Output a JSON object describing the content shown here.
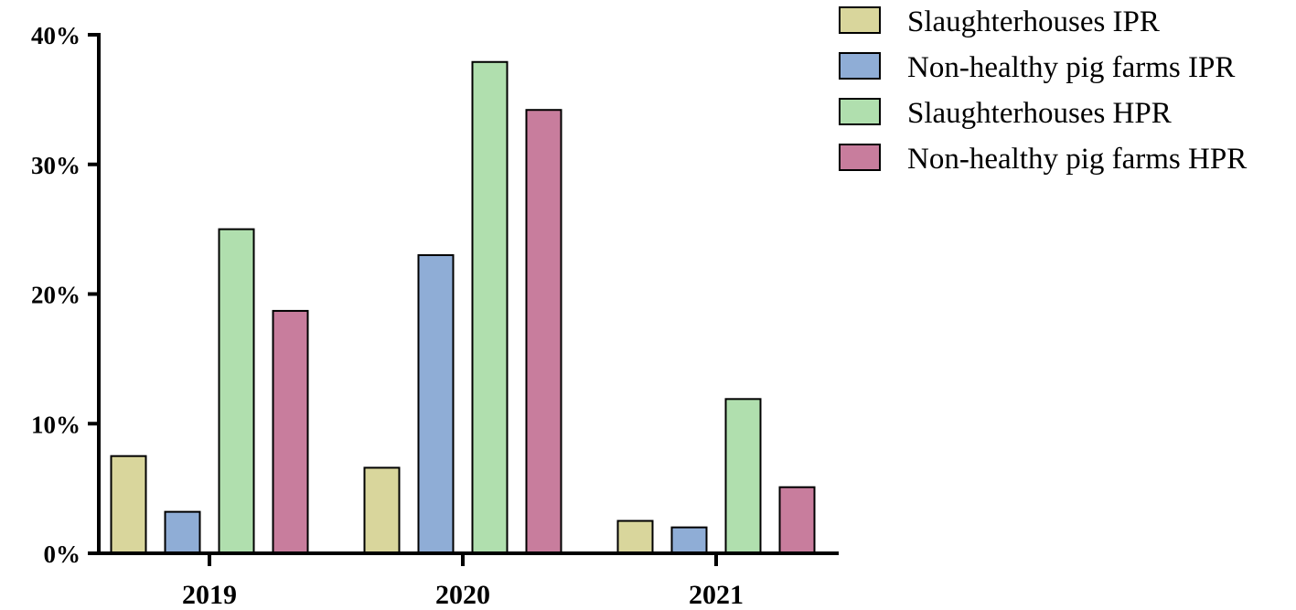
{
  "chart_data": {
    "type": "bar",
    "title": "",
    "xlabel": "",
    "ylabel": "",
    "categories": [
      "2019",
      "2020",
      "2021"
    ],
    "ylim": [
      0,
      40
    ],
    "yticks": [
      0,
      10,
      20,
      30,
      40
    ],
    "ytick_labels": [
      "0%",
      "10%",
      "20%",
      "30%",
      "40%"
    ],
    "grid": false,
    "legend_position": "top-right",
    "series": [
      {
        "name": "Slaughterhouses IPR",
        "color": "#d9d69c",
        "values": [
          7.5,
          6.6,
          2.5
        ]
      },
      {
        "name": "Non-healthy pig farms IPR",
        "color": "#8fadd6",
        "values": [
          3.2,
          23.0,
          2.0
        ]
      },
      {
        "name": "Slaughterhouses HPR",
        "color": "#b0dfae",
        "values": [
          25.0,
          37.9,
          11.9
        ]
      },
      {
        "name": "Non-healthy pig farms HPR",
        "color": "#c87d9d",
        "values": [
          18.7,
          34.2,
          5.1
        ]
      }
    ]
  }
}
